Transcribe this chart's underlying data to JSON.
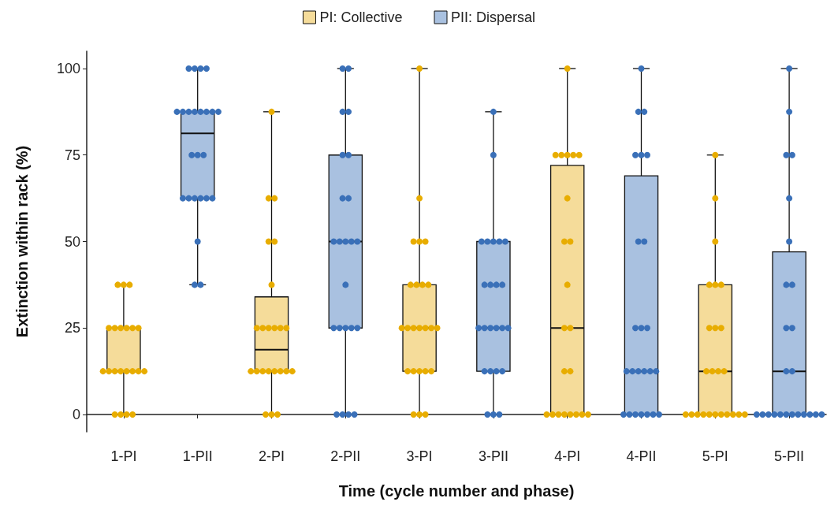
{
  "chart_data": {
    "type": "box",
    "xlabel": "Time (cycle number and phase)",
    "ylabel": "Extinction within rack (%)",
    "categories": [
      "1-PI",
      "1-PII",
      "2-PI",
      "2-PII",
      "3-PI",
      "3-PII",
      "4-PI",
      "4-PII",
      "5-PI",
      "5-PII"
    ],
    "ylim": [
      -5,
      105
    ],
    "yticks": [
      0,
      25,
      50,
      75,
      100
    ],
    "grid": false,
    "legend": "top",
    "marker": "circle",
    "series": [
      {
        "name": "PI: Collective",
        "color": "#f5dc9a",
        "boxes": [
          {
            "low": 0,
            "q1": 12.5,
            "median": 12.5,
            "q3": 25,
            "high": 37.5
          },
          null,
          {
            "low": 0,
            "q1": 12.5,
            "median": 18.75,
            "q3": 34,
            "high": 87.5
          },
          null,
          {
            "low": 0,
            "q1": 12.5,
            "median": 25,
            "q3": 37.5,
            "high": 100
          },
          null,
          {
            "low": 0,
            "q1": 0,
            "median": 25,
            "q3": 72,
            "high": 100
          },
          null,
          {
            "low": 0,
            "q1": 0,
            "median": 12.5,
            "q3": 37.5,
            "high": 75
          },
          null
        ]
      },
      {
        "name": "PII: Dispersal",
        "color": "#a9c1e0",
        "boxes": [
          null,
          {
            "low": 37.5,
            "q1": 62.5,
            "median": 81.25,
            "q3": 87.5,
            "high": 100
          },
          null,
          {
            "low": 0,
            "q1": 25,
            "median": 50,
            "q3": 75,
            "high": 100
          },
          null,
          {
            "low": 0,
            "q1": 12.5,
            "median": 25,
            "q3": 50,
            "high": 87.5
          },
          null,
          {
            "low": 0,
            "q1": 0,
            "median": 12.5,
            "q3": 69,
            "high": 100
          },
          null,
          {
            "low": 0,
            "q1": 0,
            "median": 12.5,
            "q3": 47,
            "high": 100
          }
        ]
      },
      {
        "type": "scatter",
        "color": "#e8ad00",
        "x": [
          "1-PI",
          "1-PI",
          "1-PI",
          "1-PI",
          "1-PI",
          "1-PI",
          "1-PI",
          "1-PI",
          "1-PI",
          "1-PI",
          "1-PI",
          "1-PI",
          "1-PI",
          "1-PI",
          "1-PI",
          "1-PI",
          "1-PI",
          "1-PI",
          "1-PI",
          "1-PI",
          "1-PI"
        ],
        "values": [
          0,
          0,
          0,
          0,
          12.5,
          12.5,
          12.5,
          12.5,
          12.5,
          12.5,
          12.5,
          12.5,
          25,
          25,
          25,
          25,
          25,
          25,
          37.5,
          37.5,
          37.5
        ]
      },
      {
        "type": "scatter",
        "color": "#3a70b8",
        "x": [
          "1-PII",
          "1-PII",
          "1-PII",
          "1-PII",
          "1-PII",
          "1-PII",
          "1-PII",
          "1-PII",
          "1-PII",
          "1-PII",
          "1-PII",
          "1-PII",
          "1-PII",
          "1-PII",
          "1-PII",
          "1-PII",
          "1-PII",
          "1-PII",
          "1-PII",
          "1-PII",
          "1-PII",
          "1-PII",
          "1-PII",
          "1-PII"
        ],
        "values": [
          37.5,
          37.5,
          50,
          62.5,
          62.5,
          62.5,
          62.5,
          62.5,
          62.5,
          75,
          75,
          75,
          87.5,
          87.5,
          87.5,
          87.5,
          87.5,
          87.5,
          87.5,
          87.5,
          100,
          100,
          100,
          100
        ]
      },
      {
        "type": "scatter",
        "color": "#e8ad00",
        "x": [
          "2-PI",
          "2-PI",
          "2-PI",
          "2-PI",
          "2-PI",
          "2-PI",
          "2-PI",
          "2-PI",
          "2-PI",
          "2-PI",
          "2-PI",
          "2-PI",
          "2-PI",
          "2-PI",
          "2-PI",
          "2-PI",
          "2-PI",
          "2-PI",
          "2-PI",
          "2-PI",
          "2-PI",
          "2-PI",
          "2-PI"
        ],
        "values": [
          0,
          0,
          0,
          12.5,
          12.5,
          12.5,
          12.5,
          12.5,
          12.5,
          12.5,
          12.5,
          25,
          25,
          25,
          25,
          25,
          25,
          37.5,
          50,
          50,
          62.5,
          62.5,
          87.5
        ]
      },
      {
        "type": "scatter",
        "color": "#3a70b8",
        "x": [
          "2-PII",
          "2-PII",
          "2-PII",
          "2-PII",
          "2-PII",
          "2-PII",
          "2-PII",
          "2-PII",
          "2-PII",
          "2-PII",
          "2-PII",
          "2-PII",
          "2-PII",
          "2-PII",
          "2-PII",
          "2-PII",
          "2-PII",
          "2-PII",
          "2-PII",
          "2-PII",
          "2-PII",
          "2-PII",
          "2-PII"
        ],
        "values": [
          0,
          0,
          0,
          0,
          25,
          25,
          25,
          25,
          25,
          37.5,
          50,
          50,
          50,
          50,
          50,
          62.5,
          62.5,
          75,
          75,
          87.5,
          87.5,
          100,
          100
        ]
      },
      {
        "type": "scatter",
        "color": "#e8ad00",
        "x": [
          "3-PI",
          "3-PI",
          "3-PI",
          "3-PI",
          "3-PI",
          "3-PI",
          "3-PI",
          "3-PI",
          "3-PI",
          "3-PI",
          "3-PI",
          "3-PI",
          "3-PI",
          "3-PI",
          "3-PI",
          "3-PI",
          "3-PI",
          "3-PI",
          "3-PI",
          "3-PI",
          "3-PI",
          "3-PI",
          "3-PI",
          "3-PI"
        ],
        "values": [
          0,
          0,
          0,
          12.5,
          12.5,
          12.5,
          12.5,
          12.5,
          25,
          25,
          25,
          25,
          25,
          25,
          25,
          37.5,
          37.5,
          37.5,
          37.5,
          50,
          50,
          50,
          62.5,
          100
        ]
      },
      {
        "type": "scatter",
        "color": "#3a70b8",
        "x": [
          "3-PII",
          "3-PII",
          "3-PII",
          "3-PII",
          "3-PII",
          "3-PII",
          "3-PII",
          "3-PII",
          "3-PII",
          "3-PII",
          "3-PII",
          "3-PII",
          "3-PII",
          "3-PII",
          "3-PII",
          "3-PII",
          "3-PII",
          "3-PII",
          "3-PII",
          "3-PII",
          "3-PII",
          "3-PII",
          "3-PII",
          "3-PII"
        ],
        "values": [
          0,
          0,
          0,
          12.5,
          12.5,
          12.5,
          12.5,
          25,
          25,
          25,
          25,
          25,
          25,
          37.5,
          37.5,
          37.5,
          37.5,
          50,
          50,
          50,
          50,
          50,
          75,
          87.5
        ]
      },
      {
        "type": "scatter",
        "color": "#e8ad00",
        "x": [
          "4-PI",
          "4-PI",
          "4-PI",
          "4-PI",
          "4-PI",
          "4-PI",
          "4-PI",
          "4-PI",
          "4-PI",
          "4-PI",
          "4-PI",
          "4-PI",
          "4-PI",
          "4-PI",
          "4-PI",
          "4-PI",
          "4-PI",
          "4-PI",
          "4-PI",
          "4-PI",
          "4-PI",
          "4-PI"
        ],
        "values": [
          0,
          0,
          0,
          0,
          0,
          0,
          0,
          0,
          12.5,
          12.5,
          25,
          25,
          37.5,
          50,
          50,
          62.5,
          75,
          75,
          75,
          75,
          75,
          100
        ]
      },
      {
        "type": "scatter",
        "color": "#3a70b8",
        "x": [
          "4-PII",
          "4-PII",
          "4-PII",
          "4-PII",
          "4-PII",
          "4-PII",
          "4-PII",
          "4-PII",
          "4-PII",
          "4-PII",
          "4-PII",
          "4-PII",
          "4-PII",
          "4-PII",
          "4-PII",
          "4-PII",
          "4-PII",
          "4-PII",
          "4-PII",
          "4-PII",
          "4-PII",
          "4-PII",
          "4-PII",
          "4-PII"
        ],
        "values": [
          0,
          0,
          0,
          0,
          0,
          0,
          0,
          12.5,
          12.5,
          12.5,
          12.5,
          12.5,
          12.5,
          25,
          25,
          25,
          50,
          50,
          75,
          75,
          75,
          87.5,
          87.5,
          100
        ]
      },
      {
        "type": "scatter",
        "color": "#e8ad00",
        "x": [
          "5-PI",
          "5-PI",
          "5-PI",
          "5-PI",
          "5-PI",
          "5-PI",
          "5-PI",
          "5-PI",
          "5-PI",
          "5-PI",
          "5-PI",
          "5-PI",
          "5-PI",
          "5-PI",
          "5-PI",
          "5-PI",
          "5-PI",
          "5-PI",
          "5-PI",
          "5-PI",
          "5-PI",
          "5-PI",
          "5-PI",
          "5-PI"
        ],
        "values": [
          0,
          0,
          0,
          0,
          0,
          0,
          0,
          0,
          0,
          0,
          0,
          12.5,
          12.5,
          12.5,
          12.5,
          25,
          25,
          25,
          37.5,
          37.5,
          37.5,
          50,
          62.5,
          75
        ]
      },
      {
        "type": "scatter",
        "color": "#3a70b8",
        "x": [
          "5-PII",
          "5-PII",
          "5-PII",
          "5-PII",
          "5-PII",
          "5-PII",
          "5-PII",
          "5-PII",
          "5-PII",
          "5-PII",
          "5-PII",
          "5-PII",
          "5-PII",
          "5-PII",
          "5-PII",
          "5-PII",
          "5-PII",
          "5-PII",
          "5-PII",
          "5-PII",
          "5-PII",
          "5-PII",
          "5-PII",
          "5-PII"
        ],
        "values": [
          0,
          0,
          0,
          0,
          0,
          0,
          0,
          0,
          0,
          0,
          0,
          0,
          12.5,
          12.5,
          25,
          25,
          37.5,
          37.5,
          50,
          62.5,
          75,
          75,
          87.5,
          100
        ]
      }
    ]
  }
}
